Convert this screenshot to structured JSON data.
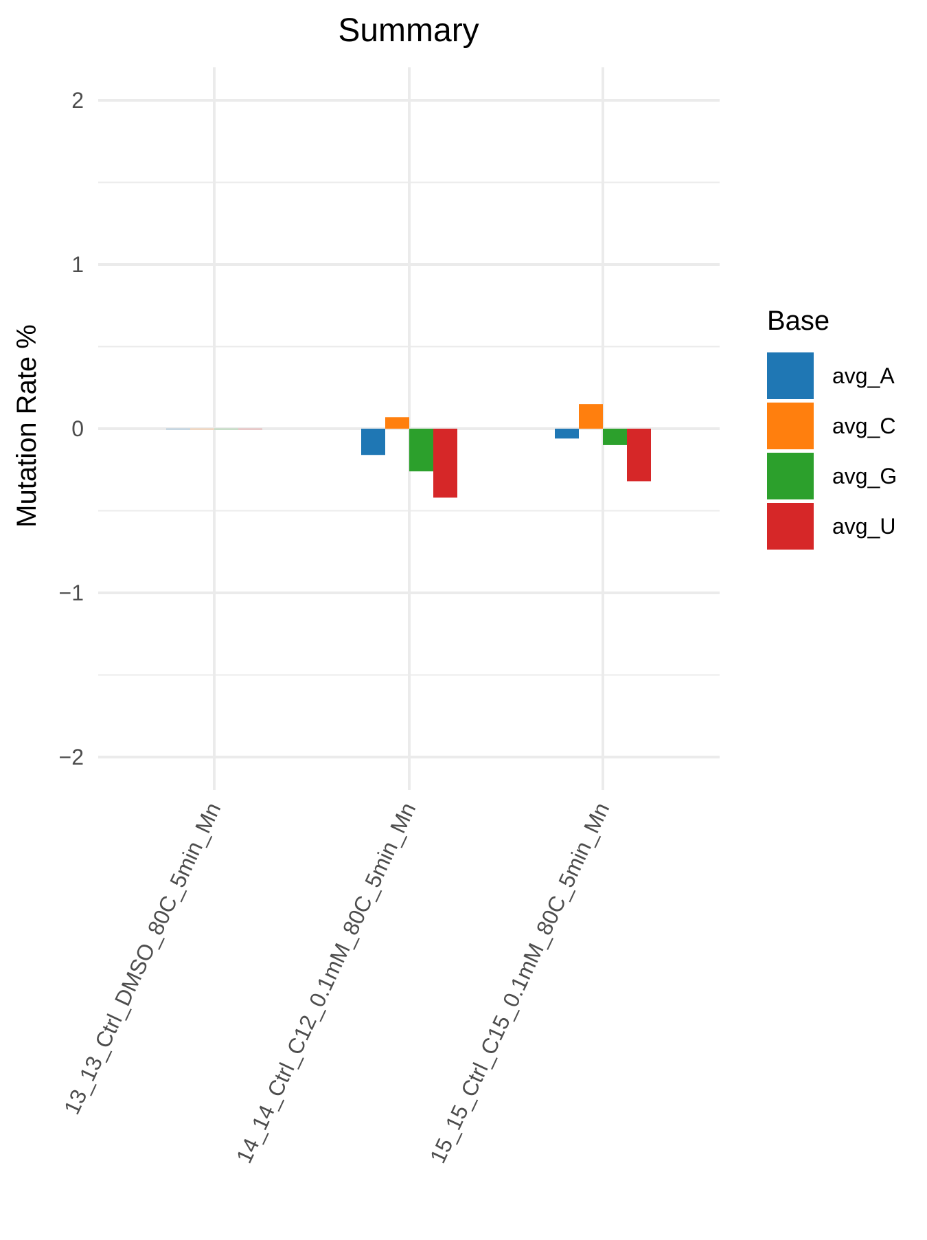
{
  "chart_data": {
    "type": "bar",
    "title": "Summary",
    "xlabel": "",
    "ylabel": "Mutation Rate %",
    "ylim": [
      -2.2,
      2.2
    ],
    "yticks": [
      "-2",
      "-1",
      "0",
      "1",
      "2"
    ],
    "categories": [
      "13_13_Ctrl_DMSO_80C_5min_Mn",
      "14_14_Ctrl_C12_0.1mM_80C_5min_Mn",
      "15_15_Ctrl_C15_0.1mM_80C_5min_Mn"
    ],
    "series": [
      {
        "name": "avg_A",
        "values": [
          0.0,
          -0.16,
          -0.06
        ]
      },
      {
        "name": "avg_C",
        "values": [
          0.0,
          0.07,
          0.15
        ]
      },
      {
        "name": "avg_G",
        "values": [
          0.0,
          -0.26,
          -0.1
        ]
      },
      {
        "name": "avg_U",
        "values": [
          0.0,
          -0.42,
          -0.32
        ]
      }
    ],
    "colors": [
      "#1f77b4",
      "#ff7f0e",
      "#2ca02c",
      "#d62728"
    ],
    "legend": {
      "title": "Base",
      "position": "right"
    },
    "grid": true
  }
}
